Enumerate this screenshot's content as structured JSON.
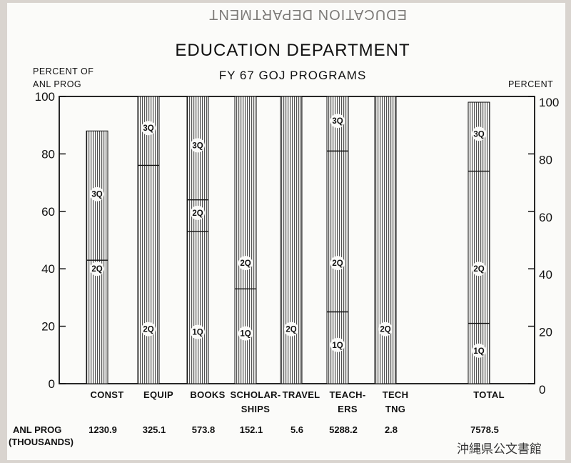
{
  "title": "EDUCATION DEPARTMENT",
  "subtitle": "FY 67 GOJ PROGRAMS",
  "ghost_text": "EDUCATION DEPARTMENT",
  "archive_stamp": "沖縄県公文書館",
  "chart_data": {
    "type": "bar",
    "stacked": true,
    "left_axis_label": [
      "PERCENT OF",
      "ANL PROG"
    ],
    "right_axis_label": "PERCENT",
    "ylim": [
      0,
      100
    ],
    "yticks": [
      "0",
      "20",
      "40",
      "60",
      "80",
      "100"
    ],
    "grid": false,
    "row_label": [
      "ANL PROG",
      "(THOUSANDS)"
    ],
    "categories": [
      {
        "label": [
          "CONST"
        ],
        "anl_prog": "1230.9",
        "bands": [
          {
            "name": "2Q",
            "from": 0,
            "to": 43
          },
          {
            "name": "3Q",
            "from": 43,
            "to": 88
          }
        ]
      },
      {
        "label": [
          "EQUIP"
        ],
        "anl_prog": "325.1",
        "bands": [
          {
            "name": "2Q",
            "from": 0,
            "to": 76
          },
          {
            "name": "3Q",
            "from": 76,
            "to": 100
          }
        ]
      },
      {
        "label": [
          "BOOKS"
        ],
        "anl_prog": "573.8",
        "bands": [
          {
            "name": "1Q",
            "from": 0,
            "to": 53
          },
          {
            "name": "2Q",
            "from": 53,
            "to": 64
          },
          {
            "name": "3Q",
            "from": 64,
            "to": 100
          }
        ]
      },
      {
        "label": [
          "SCHOLAR-",
          "SHIPS"
        ],
        "anl_prog": "152.1",
        "bands": [
          {
            "name": "1Q",
            "from": 0,
            "to": 33
          },
          {
            "name": "2Q",
            "from": 33,
            "to": 100
          }
        ]
      },
      {
        "label": [
          "TRAVEL"
        ],
        "anl_prog": "5.6",
        "bands": [
          {
            "name": "2Q",
            "from": 0,
            "to": 100
          }
        ]
      },
      {
        "label": [
          "TEACH-",
          "ERS"
        ],
        "anl_prog": "5288.2",
        "bands": [
          {
            "name": "1Q",
            "from": 0,
            "to": 25
          },
          {
            "name": "2Q",
            "from": 25,
            "to": 81
          },
          {
            "name": "3Q",
            "from": 81,
            "to": 100
          }
        ]
      },
      {
        "label": [
          "TECH",
          "TNG"
        ],
        "anl_prog": "2.8",
        "bands": [
          {
            "name": "2Q",
            "from": 0,
            "to": 100
          }
        ]
      },
      {
        "label": [
          "TOTAL"
        ],
        "anl_prog": "7578.5",
        "bands": [
          {
            "name": "1Q",
            "from": 0,
            "to": 21
          },
          {
            "name": "2Q",
            "from": 21,
            "to": 74
          },
          {
            "name": "3Q",
            "from": 74,
            "to": 98
          }
        ]
      }
    ]
  }
}
